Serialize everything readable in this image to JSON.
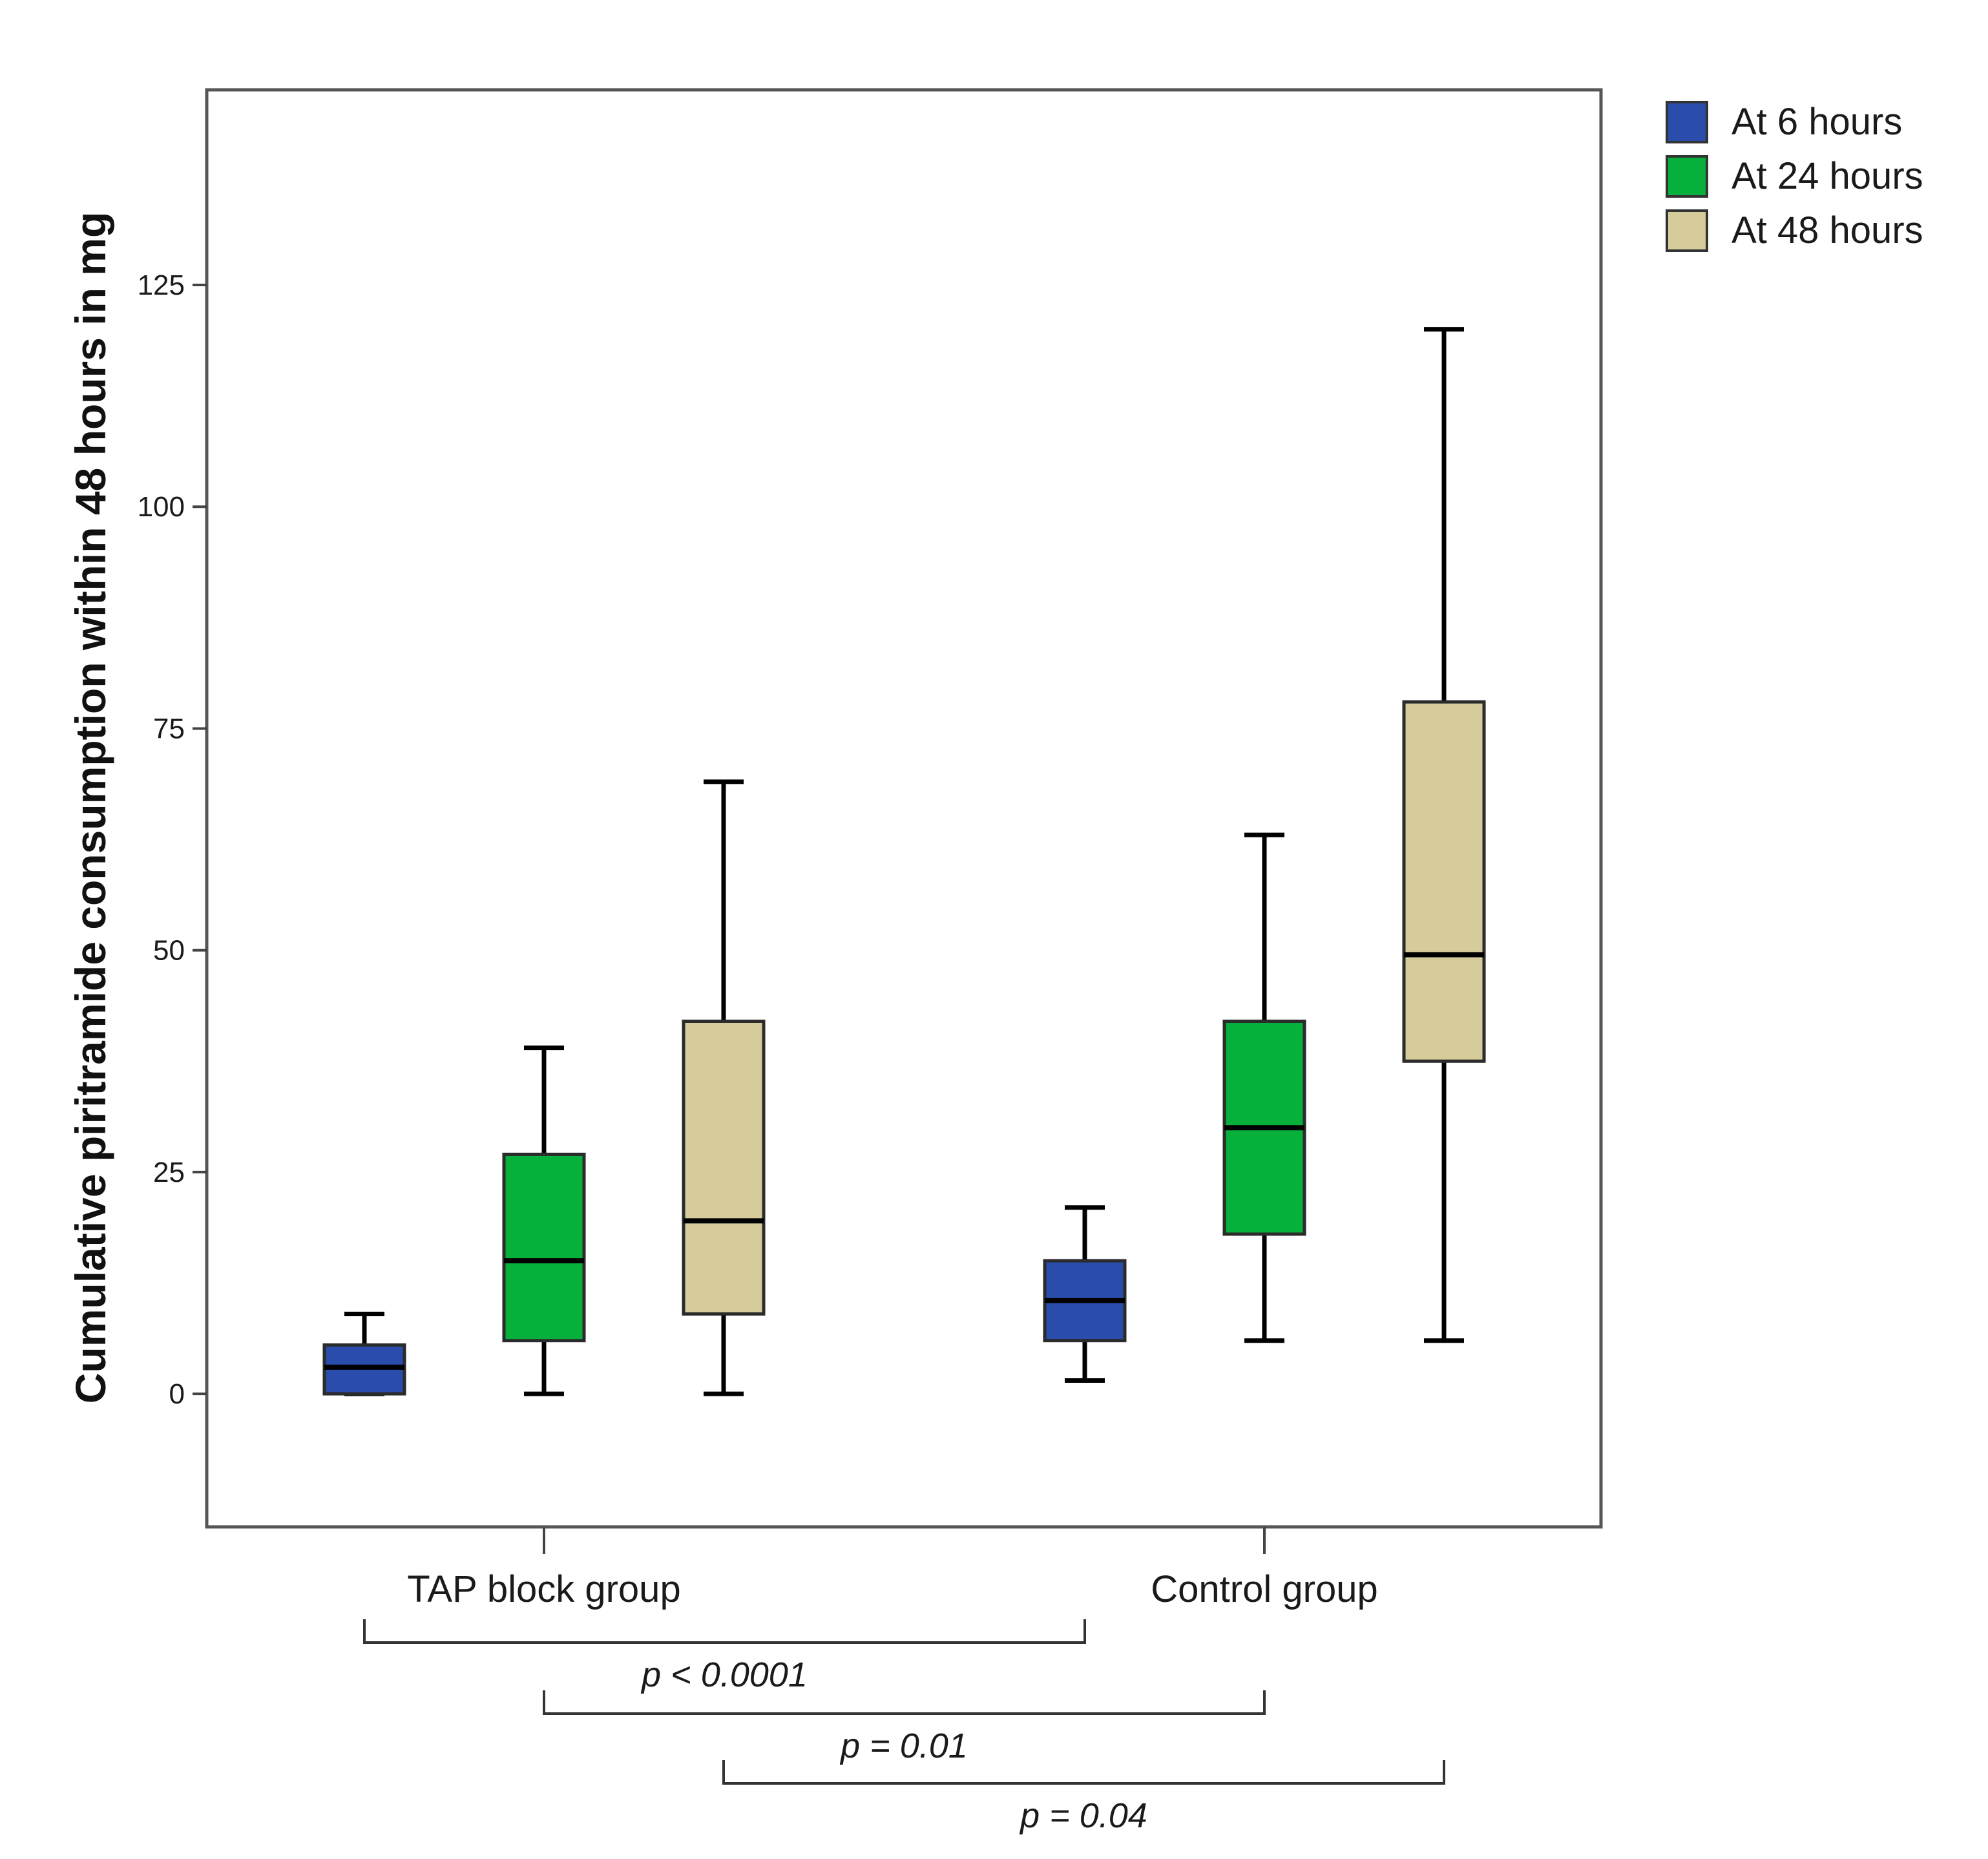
{
  "chart_data": {
    "type": "box",
    "ylabel": "Cumulative piritramide consumption within 48 hours in mg",
    "xlabel": "",
    "ylim": [
      -15,
      147
    ],
    "yticks": [
      0,
      25,
      50,
      75,
      100,
      125
    ],
    "categories": [
      "TAP block group",
      "Control group"
    ],
    "legend_position": "top-right",
    "series": [
      {
        "name": "At 6 hours",
        "color": "#2a4dab",
        "boxes": [
          {
            "category": "TAP block group",
            "min": 0,
            "q1": 0,
            "median": 3,
            "q3": 5.5,
            "max": 9
          },
          {
            "category": "Control group",
            "min": 1.5,
            "q1": 6,
            "median": 10.5,
            "q3": 15,
            "max": 21
          }
        ]
      },
      {
        "name": "At 24 hours",
        "color": "#07b03a",
        "boxes": [
          {
            "category": "TAP block group",
            "min": 0,
            "q1": 6,
            "median": 15,
            "q3": 27,
            "max": 39
          },
          {
            "category": "Control group",
            "min": 6,
            "q1": 18,
            "median": 30,
            "q3": 42,
            "max": 63
          }
        ]
      },
      {
        "name": "At 48 hours",
        "color": "#d6cc9b",
        "boxes": [
          {
            "category": "TAP block group",
            "min": 0,
            "q1": 9,
            "median": 19.5,
            "q3": 42,
            "max": 69
          },
          {
            "category": "Control group",
            "min": 6,
            "q1": 37.5,
            "median": 49.5,
            "q3": 78,
            "max": 120
          }
        ]
      }
    ],
    "annotations": [
      {
        "series": "At 6 hours",
        "text": "p < 0.0001"
      },
      {
        "series": "At 24 hours",
        "text": "p = 0.01"
      },
      {
        "series": "At 48 hours",
        "text": "p = 0.04"
      }
    ]
  }
}
